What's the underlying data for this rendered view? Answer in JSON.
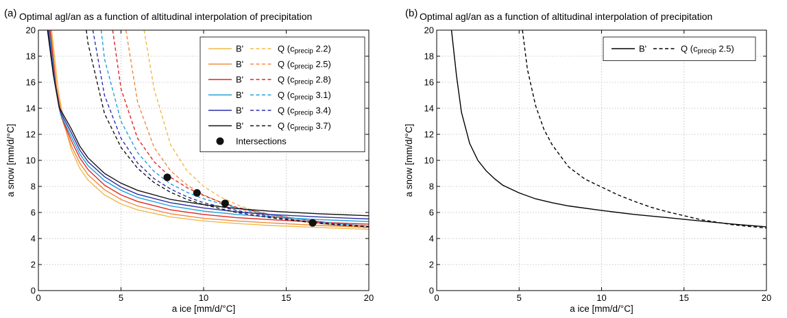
{
  "chart_data": [
    {
      "type": "line",
      "panel_label": "(a)",
      "title": "Optimal agl/an as a function of altitudinal interpolation of precipitation",
      "xlabel": "a ice [mm/d/°C]",
      "ylabel": "a snow [mm/d/°C]",
      "xlim": [
        0,
        20
      ],
      "ylim": [
        0,
        20
      ],
      "xticks": [
        0,
        5,
        10,
        15,
        20
      ],
      "yticks": [
        0,
        2,
        4,
        6,
        8,
        10,
        12,
        14,
        16,
        18,
        20
      ],
      "grid": true,
      "legend_position": "top-right",
      "legend": [
        {
          "solid": "B'",
          "dashed": "Q",
          "cprecip": "2.2",
          "color": "#f2b84a"
        },
        {
          "solid": "B'",
          "dashed": "Q",
          "cprecip": "2.5",
          "color": "#f08a3c"
        },
        {
          "solid": "B'",
          "dashed": "Q",
          "cprecip": "2.8",
          "color": "#e02424"
        },
        {
          "solid": "B'",
          "dashed": "Q",
          "cprecip": "3.1",
          "color": "#1e9fd8"
        },
        {
          "solid": "B'",
          "dashed": "Q",
          "cprecip": "3.4",
          "color": "#2a2ea8"
        },
        {
          "solid": "B'",
          "dashed": "Q",
          "cprecip": "3.7",
          "color": "#111111"
        }
      ],
      "legend_prefix": "(c",
      "legend_sub": "precip",
      "legend_suffix": ")",
      "intersections_label": "Intersections",
      "series": [
        {
          "cprecip": "2.2",
          "color": "#f2b84a",
          "B_prime": {
            "x": [
              0.8,
              1.2,
              1.6,
              2,
              2.5,
              3,
              4,
              5,
              6,
              8,
              10,
              12,
              14,
              17,
              20
            ],
            "y": [
              20,
              15.4,
              12.6,
              10.8,
              9.4,
              8.5,
              7.35,
              6.65,
              6.2,
              5.65,
              5.35,
              5.15,
              5.0,
              4.85,
              4.7
            ]
          },
          "Q": {
            "x": [
              6.4,
              7,
              8,
              9,
              10,
              11,
              12,
              13,
              14,
              16,
              18,
              20
            ],
            "y": [
              20,
              15.5,
              11.2,
              9.2,
              8.0,
              7.2,
              6.6,
              6.15,
              5.8,
              5.3,
              5.0,
              4.8
            ]
          }
        },
        {
          "cprecip": "2.5",
          "color": "#f08a3c",
          "B_prime": {
            "x": [
              0.75,
              1.1,
              1.5,
              2,
              2.5,
              3,
              4,
              5,
              6,
              8,
              10,
              12,
              14,
              17,
              20
            ],
            "y": [
              20,
              15.6,
              12.9,
              11.1,
              9.8,
              8.9,
              7.75,
              7.0,
              6.5,
              5.9,
              5.55,
              5.35,
              5.2,
              5.0,
              4.85
            ]
          },
          "Q": {
            "x": [
              5.3,
              6,
              7,
              8,
              9,
              10,
              11,
              12,
              13,
              14,
              16,
              18,
              20
            ],
            "y": [
              20,
              14.5,
              11.0,
              9.2,
              8.1,
              7.35,
              6.8,
              6.35,
              6.0,
              5.75,
              5.35,
              5.05,
              4.85
            ]
          }
        },
        {
          "cprecip": "2.8",
          "color": "#e02424",
          "B_prime": {
            "x": [
              0.7,
              1.05,
              1.4,
              2,
              2.5,
              3,
              4,
              5,
              6,
              8,
              10,
              12,
              14,
              17,
              20
            ],
            "y": [
              20,
              15.8,
              13.3,
              11.5,
              10.2,
              9.3,
              8.1,
              7.35,
              6.85,
              6.2,
              5.85,
              5.6,
              5.45,
              5.25,
              5.1
            ]
          },
          "Q": {
            "x": [
              4.5,
              5,
              6,
              7,
              8,
              9,
              10,
              11,
              12,
              14,
              16,
              18,
              20
            ],
            "y": [
              20,
              15.5,
              11.7,
              9.9,
              8.7,
              7.9,
              7.3,
              6.8,
              6.4,
              5.85,
              5.45,
              5.15,
              4.95
            ]
          }
        },
        {
          "cprecip": "3.1",
          "color": "#1e9fd8",
          "B_prime": {
            "x": [
              0.65,
              1,
              1.35,
              2,
              2.5,
              3,
              4,
              5,
              6,
              8,
              10,
              12,
              14,
              17,
              20
            ],
            "y": [
              20,
              16.0,
              13.5,
              11.8,
              10.5,
              9.6,
              8.45,
              7.7,
              7.15,
              6.5,
              6.1,
              5.85,
              5.65,
              5.45,
              5.3
            ]
          },
          "Q": {
            "x": [
              3.8,
              4,
              5,
              6,
              7,
              8,
              9,
              10,
              12,
              14,
              16,
              18,
              20
            ],
            "y": [
              20,
              17.8,
              13.0,
              10.6,
              9.15,
              8.2,
              7.55,
              7.05,
              6.35,
              5.85,
              5.45,
              5.15,
              4.95
            ]
          }
        },
        {
          "cprecip": "3.4",
          "color": "#2a2ea8",
          "B_prime": {
            "x": [
              0.6,
              0.95,
              1.3,
              2,
              2.5,
              3,
              4,
              5,
              6,
              8,
              10,
              12,
              14,
              17,
              20
            ],
            "y": [
              20,
              16.3,
              13.8,
              12.1,
              10.8,
              9.9,
              8.75,
              7.95,
              7.4,
              6.75,
              6.35,
              6.05,
              5.85,
              5.65,
              5.5
            ]
          },
          "Q": {
            "x": [
              3.3,
              4,
              5,
              6,
              7,
              8,
              9,
              10,
              12,
              14,
              16,
              18,
              20
            ],
            "y": [
              20,
              15.0,
              11.7,
              9.8,
              8.6,
              7.8,
              7.2,
              6.75,
              6.15,
              5.7,
              5.35,
              5.1,
              4.9
            ]
          }
        },
        {
          "cprecip": "3.7",
          "color": "#111111",
          "B_prime": {
            "x": [
              0.55,
              0.9,
              1.25,
              2,
              2.5,
              3,
              4,
              5,
              6,
              8,
              10,
              12,
              14,
              17,
              20
            ],
            "y": [
              20,
              16.6,
              14.1,
              12.4,
              11.1,
              10.2,
              9.0,
              8.25,
              7.7,
              7.0,
              6.6,
              6.3,
              6.1,
              5.9,
              5.75
            ]
          },
          "Q": {
            "x": [
              2.9,
              3,
              4,
              5,
              6,
              7,
              8,
              9,
              10,
              12,
              14,
              16,
              18,
              20
            ],
            "y": [
              20,
              19.0,
              13.6,
              11.0,
              9.4,
              8.3,
              7.55,
              7.0,
              6.6,
              6.0,
              5.6,
              5.3,
              5.05,
              4.9
            ]
          }
        }
      ],
      "intersections": {
        "x": [
          7.8,
          9.6,
          11.3,
          16.6
        ],
        "y": [
          8.7,
          7.5,
          6.7,
          5.2
        ]
      }
    },
    {
      "type": "line",
      "panel_label": "(b)",
      "title": "Optimal agl/an as a function of altitudinal interpolation of precipitation",
      "xlabel": "a ice [mm/d/°C]",
      "ylabel": "a snow [mm/d/°C]",
      "xlim": [
        0,
        20
      ],
      "ylim": [
        0,
        20
      ],
      "xticks": [
        0,
        5,
        10,
        15,
        20
      ],
      "yticks": [
        0,
        2,
        4,
        6,
        8,
        10,
        12,
        14,
        16,
        18,
        20
      ],
      "grid": true,
      "legend_position": "top-right",
      "legend": [
        {
          "solid": "B'",
          "dashed": "Q",
          "cprecip": "2.5",
          "color": "#000000"
        }
      ],
      "legend_prefix": "(c",
      "legend_sub": "precip",
      "legend_suffix": ")",
      "series": [
        {
          "cprecip": "2.5",
          "color": "#000000",
          "B_prime": {
            "x": [
              0.9,
              1.2,
              1.5,
              2,
              2.5,
              3,
              3.5,
              4,
              5,
              6,
              7,
              8,
              10,
              12,
              14,
              16,
              18,
              20
            ],
            "y": [
              20,
              16.5,
              13.7,
              11.3,
              10.0,
              9.2,
              8.6,
              8.1,
              7.5,
              7.05,
              6.75,
              6.5,
              6.15,
              5.85,
              5.6,
              5.35,
              5.1,
              4.9
            ]
          },
          "Q": {
            "x": [
              5.2,
              5.5,
              6,
              6.5,
              7,
              8,
              9,
              10,
              11,
              12,
              13,
              14,
              16,
              18,
              20
            ],
            "y": [
              20,
              17.0,
              14.2,
              12.4,
              11.2,
              9.5,
              8.55,
              7.95,
              7.35,
              6.85,
              6.4,
              6.05,
              5.45,
              5.05,
              4.8
            ]
          }
        }
      ]
    }
  ]
}
